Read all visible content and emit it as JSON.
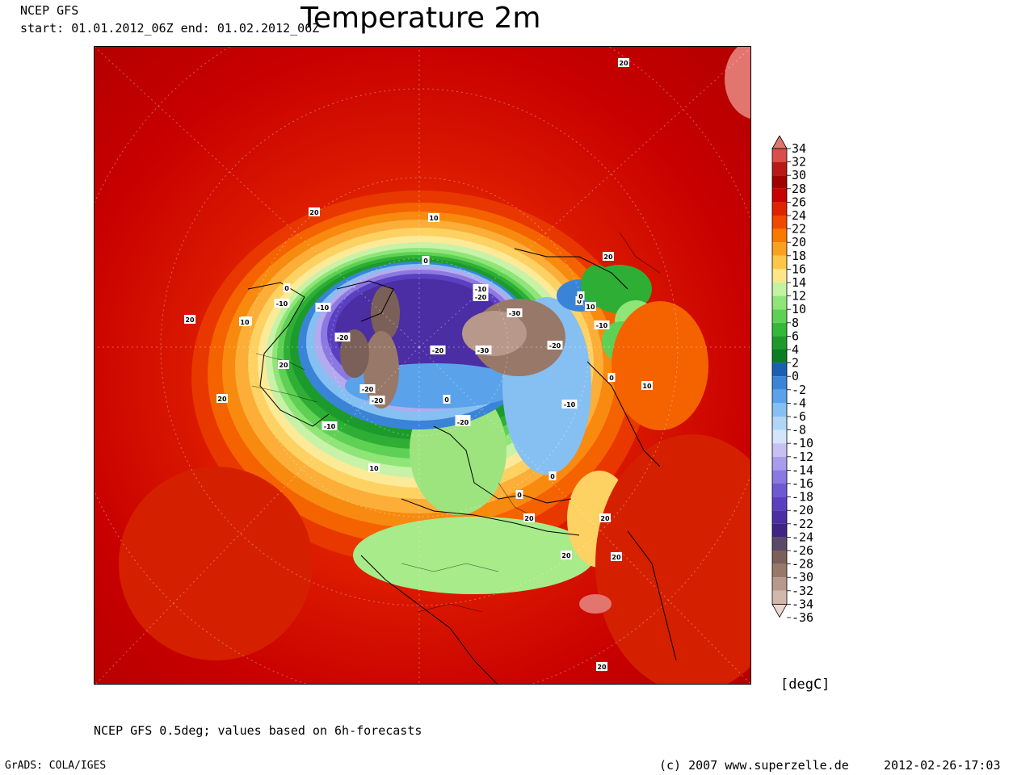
{
  "header": {
    "model": "NCEP GFS",
    "period": "start: 01.01.2012_06Z    end: 01.02.2012_06Z",
    "title": "Temperature 2m"
  },
  "legend": {
    "unit": "[degC]",
    "levels": [
      "34",
      "32",
      "30",
      "28",
      "26",
      "24",
      "22",
      "20",
      "18",
      "16",
      "14",
      "12",
      "10",
      "8",
      "6",
      "4",
      "2",
      "0",
      "-2",
      "-4",
      "-6",
      "-8",
      "-10",
      "-12",
      "-14",
      "-16",
      "-18",
      "-20",
      "-22",
      "-24",
      "-26",
      "-28",
      "-30",
      "-32",
      "-34",
      "-36"
    ],
    "colors": [
      "#e3756f",
      "#d94d4a",
      "#b91818",
      "#a00000",
      "#c80000",
      "#e12200",
      "#f04a00",
      "#f87800",
      "#fca022",
      "#fdc648",
      "#fde68a",
      "#c2f2a2",
      "#8fe578",
      "#5ed155",
      "#34b83a",
      "#1c9b2c",
      "#0c7c25",
      "#1a5fb4",
      "#3a84d8",
      "#5aa2ea",
      "#86c0f2",
      "#b0d6f7",
      "#d4e4fa",
      "#c6c0f3",
      "#a89ceb",
      "#8c78e1",
      "#6f58d3",
      "#5a3fc1",
      "#4b2ea4",
      "#3f2484",
      "#5a4a6a",
      "#7a6058",
      "#987868",
      "#b7988a",
      "#d2b8ab",
      "#ead8d0"
    ]
  },
  "map": {
    "contour_labels": [
      "20",
      "20",
      "10",
      "0",
      "-10",
      "-20",
      "-10",
      "-20",
      "-30",
      "-20",
      "-10",
      "0",
      "10",
      "20",
      "-20",
      "-30",
      "-20",
      "-20",
      "0",
      "-10",
      "-10",
      "-10",
      "0",
      "10",
      "20",
      "0",
      "0",
      "-10",
      "-20",
      "-30",
      "10",
      "20",
      "20",
      "10",
      "20",
      "20",
      "20",
      "20",
      "20",
      "0",
      "10",
      "0"
    ]
  },
  "footer": {
    "note": "NCEP GFS 0.5deg; values based on 6h-forecasts",
    "grads": "GrADS: COLA/IGES",
    "credit": "(c) 2007 www.superzelle.de",
    "timestamp": "2012-02-26-17:03"
  }
}
